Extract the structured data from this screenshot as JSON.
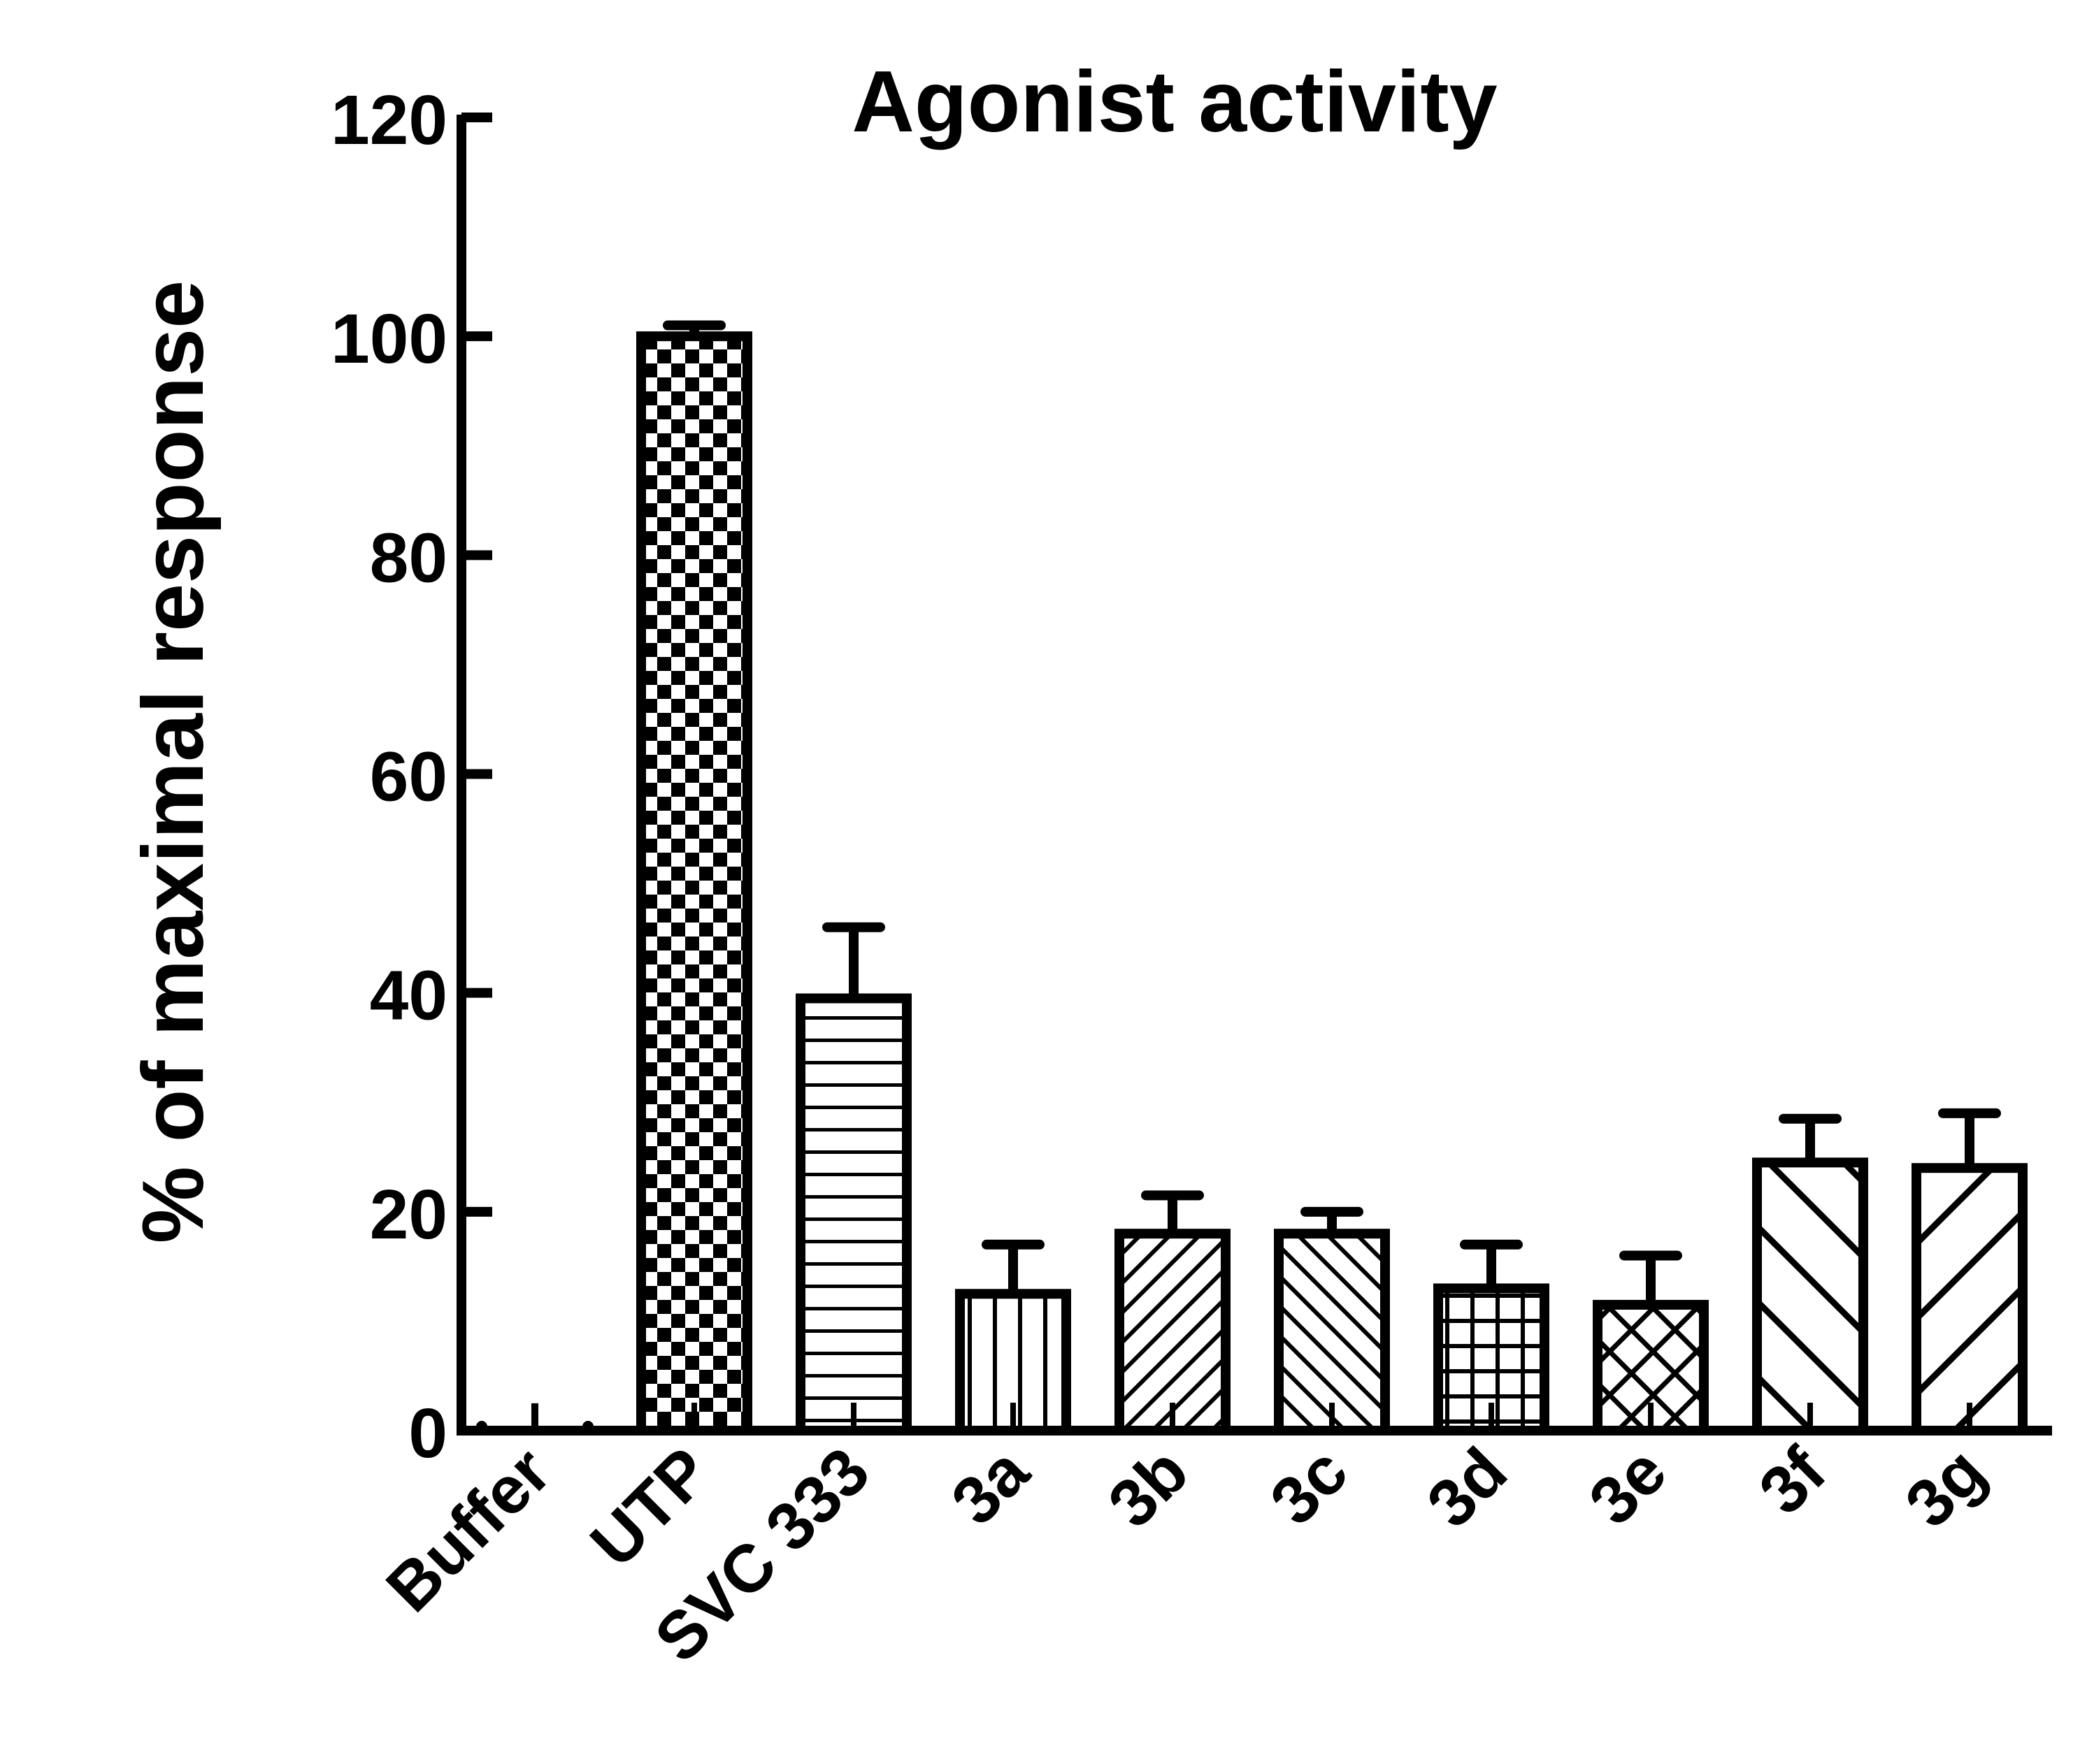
{
  "chart_data": {
    "type": "bar",
    "title": "Agonist activity",
    "xlabel": "",
    "ylabel": "% of maximal response",
    "ylim": [
      0,
      120
    ],
    "yticks": [
      "0",
      "20",
      "40",
      "60",
      "80",
      "100",
      "120"
    ],
    "grid": false,
    "categories": [
      "Buffer",
      "UTP",
      "SVC 333",
      "3a",
      "3b",
      "3c",
      "3d",
      "3e",
      "3f",
      "3g"
    ],
    "values": [
      0,
      100,
      39.5,
      12.5,
      18,
      18,
      13,
      11.5,
      24.5,
      24
    ],
    "error": [
      2.5,
      1,
      6.5,
      4.5,
      3.5,
      2,
      4,
      4.5,
      4,
      5
    ],
    "patterns": [
      "none",
      "checkerboard",
      "horizontal-lines",
      "vertical-lines",
      "back-diagonal-fine",
      "forward-diagonal-fine",
      "grid",
      "diagonal-crosshatch",
      "forward-diagonal-wide",
      "back-diagonal-wide"
    ]
  }
}
